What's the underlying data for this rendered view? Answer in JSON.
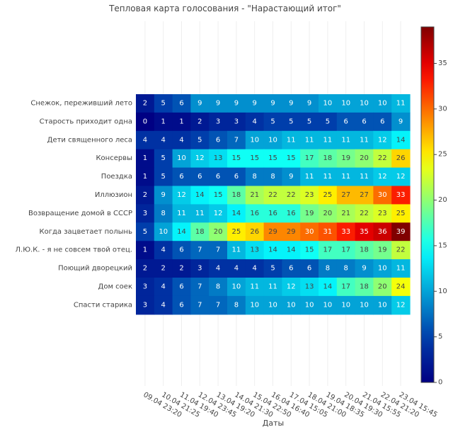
{
  "chart_data": {
    "type": "heatmap",
    "title": "Тепловая карта голосования - \"Нарастающий итог\"",
    "xlabel": "Даты",
    "ylabel": "",
    "x_categories": [
      "09.04 23:20",
      "10.04 21:25",
      "11.04 19:40",
      "12.04 23:45",
      "13.04 19:20",
      "14.04 21:30",
      "15.04 22:50",
      "16.04 16:40",
      "17.04 15:05",
      "18.04 21:00",
      "19.04 18:35",
      "20.04 19:30",
      "21.04 15:55",
      "22.04 21:20",
      "23.04 15:45"
    ],
    "y_categories": [
      "Снежок, переживший лето",
      "Старость приходит одна",
      "Дети священного леса",
      "Консервы",
      "Поездка",
      "Иллюзион",
      "Возвращение домой в СССР",
      "Когда зацветает полынь",
      "Л.Ю.К. - я не совсем твой отец.",
      "Поющий дворецкий",
      "Дом соек",
      "Спасти старика"
    ],
    "values": [
      [
        2,
        5,
        6,
        9,
        9,
        9,
        9,
        9,
        9,
        9,
        10,
        10,
        10,
        10,
        11
      ],
      [
        0,
        1,
        1,
        2,
        3,
        3,
        4,
        5,
        5,
        5,
        5,
        6,
        6,
        6,
        9
      ],
      [
        4,
        4,
        4,
        5,
        6,
        7,
        10,
        10,
        11,
        11,
        11,
        11,
        11,
        12,
        14
      ],
      [
        1,
        5,
        10,
        12,
        13,
        15,
        15,
        15,
        15,
        17,
        18,
        19,
        20,
        22,
        26
      ],
      [
        1,
        5,
        6,
        6,
        6,
        6,
        8,
        8,
        9,
        11,
        11,
        11,
        11,
        12,
        12
      ],
      [
        2,
        9,
        12,
        14,
        15,
        18,
        21,
        22,
        22,
        23,
        25,
        27,
        27,
        30,
        33
      ],
      [
        3,
        8,
        11,
        11,
        12,
        14,
        16,
        16,
        16,
        19,
        20,
        21,
        22,
        23,
        25
      ],
      [
        5,
        10,
        14,
        18,
        20,
        25,
        26,
        29,
        29,
        30,
        31,
        33,
        35,
        36,
        39
      ],
      [
        1,
        4,
        6,
        7,
        7,
        11,
        13,
        14,
        14,
        15,
        17,
        17,
        18,
        19,
        22
      ],
      [
        2,
        2,
        2,
        3,
        4,
        4,
        4,
        5,
        6,
        6,
        8,
        8,
        9,
        10,
        11
      ],
      [
        3,
        4,
        6,
        7,
        8,
        10,
        11,
        11,
        12,
        13,
        14,
        17,
        18,
        20,
        24
      ],
      [
        3,
        4,
        6,
        7,
        7,
        8,
        10,
        10,
        10,
        10,
        10,
        10,
        10,
        10,
        12
      ]
    ],
    "zmin": 0,
    "zmax": 39,
    "colorscale": "jet",
    "colorbar_ticks": [
      0,
      5,
      10,
      15,
      20,
      25,
      30,
      35
    ]
  }
}
